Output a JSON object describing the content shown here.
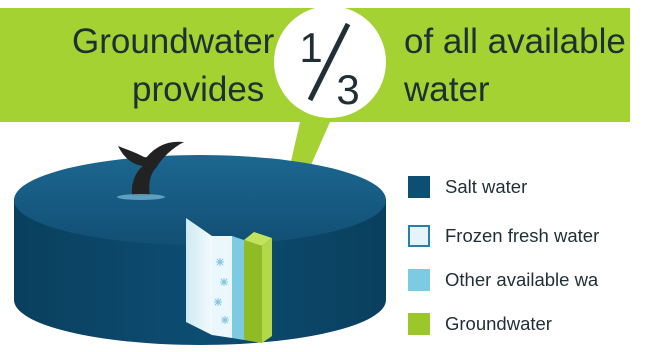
{
  "headline": {
    "line1_left": "Groundwater",
    "line2_left": "provides",
    "line1_right": "of all available",
    "line2_right": "water"
  },
  "fraction": {
    "numerator": "1",
    "denominator": "3"
  },
  "legend": [
    {
      "label": "Salt water",
      "color": "#0d4f73",
      "border": "#0d4f73"
    },
    {
      "label": "Frozen fresh water",
      "color": "#e5f4fa",
      "border": "#2a7fa8"
    },
    {
      "label": "Other available wa",
      "color": "#7ccbe3",
      "border": "#7ccbe3"
    },
    {
      "label": "Groundwater",
      "color": "#9cc72b",
      "border": "#9cc72b"
    }
  ],
  "colors": {
    "bubble": "#a4d233",
    "ocean_top": "#13577d",
    "ocean_side": "#0a4566",
    "whale": "#222222"
  },
  "icons": {
    "whale_tail": "whale-tail-icon",
    "snowflake": "snowflake-icon"
  }
}
